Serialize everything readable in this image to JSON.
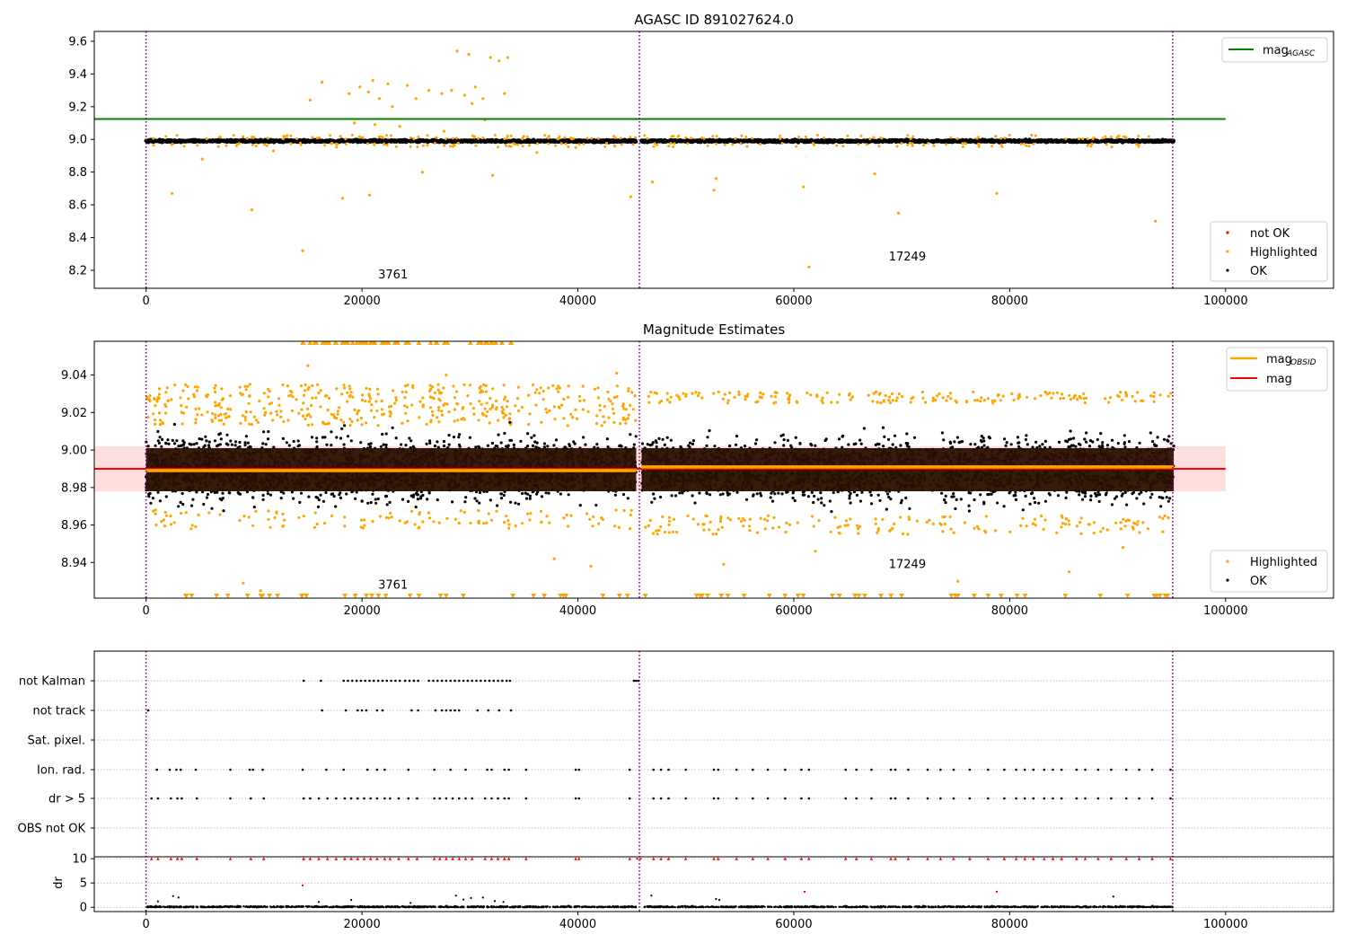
{
  "chart_data": [
    {
      "type": "scatter",
      "title": "AGASC ID 891027624.0",
      "xlim": [
        -4800,
        110000
      ],
      "ylim": [
        8.09,
        9.66
      ],
      "xticks": [
        0,
        20000,
        40000,
        60000,
        80000,
        100000
      ],
      "yticks": [
        8.2,
        8.4,
        8.6,
        8.8,
        9.0,
        9.2,
        9.4,
        9.6
      ],
      "vlines": [
        0,
        45700,
        95100
      ],
      "annotations": [
        {
          "text": "3761",
          "x": 21500,
          "y": 8.15
        },
        {
          "text": "17249",
          "x": 68800,
          "y": 8.26
        }
      ],
      "legend_top": [
        {
          "label": "mag",
          "sub": "AGASC",
          "color": "#008000",
          "kind": "line"
        }
      ],
      "legend_bottom": [
        {
          "label": "not OK",
          "color": "#ff0000",
          "kind": "dot"
        },
        {
          "label": "Highlighted",
          "color": "#ffa500",
          "kind": "dot"
        },
        {
          "label": "OK",
          "color": "#000000",
          "kind": "dot"
        }
      ],
      "mag_agasc": 9.125,
      "ok_band": {
        "center": 8.99,
        "spread": 0.02
      },
      "segments": [
        [
          0,
          45400
        ],
        [
          45900,
          95200
        ]
      ],
      "highlighted_points": [
        [
          14500,
          8.32
        ],
        [
          9800,
          8.57
        ],
        [
          2400,
          8.67
        ],
        [
          18200,
          8.64
        ],
        [
          20700,
          8.66
        ],
        [
          44900,
          8.65
        ],
        [
          46900,
          8.74
        ],
        [
          52600,
          8.69
        ],
        [
          52800,
          8.76
        ],
        [
          61400,
          8.22
        ],
        [
          69700,
          8.55
        ],
        [
          78800,
          8.67
        ],
        [
          93500,
          8.5
        ],
        [
          60900,
          8.71
        ],
        [
          67500,
          8.79
        ],
        [
          15200,
          9.24
        ],
        [
          16300,
          9.35
        ],
        [
          18800,
          9.28
        ],
        [
          19800,
          9.32
        ],
        [
          20600,
          9.29
        ],
        [
          21000,
          9.36
        ],
        [
          21600,
          9.25
        ],
        [
          22400,
          9.34
        ],
        [
          24200,
          9.33
        ],
        [
          25000,
          9.25
        ],
        [
          26200,
          9.3
        ],
        [
          27400,
          9.28
        ],
        [
          28300,
          9.3
        ],
        [
          28800,
          9.54
        ],
        [
          29500,
          9.27
        ],
        [
          29900,
          9.52
        ],
        [
          30500,
          9.32
        ],
        [
          31200,
          9.25
        ],
        [
          31900,
          9.5
        ],
        [
          32700,
          9.48
        ],
        [
          33500,
          9.5
        ],
        [
          33200,
          9.28
        ],
        [
          30200,
          9.22
        ],
        [
          22800,
          9.2
        ],
        [
          19300,
          9.1
        ],
        [
          21200,
          9.09
        ],
        [
          31400,
          9.12
        ],
        [
          27600,
          9.05
        ],
        [
          23500,
          9.08
        ],
        [
          25600,
          8.8
        ],
        [
          32100,
          8.78
        ],
        [
          5200,
          8.88
        ],
        [
          11800,
          8.93
        ],
        [
          36200,
          8.92
        ],
        [
          39800,
          8.95
        ]
      ]
    },
    {
      "type": "scatter",
      "title": "Magnitude Estimates",
      "xlim": [
        -4800,
        110000
      ],
      "ylim": [
        8.921,
        9.058
      ],
      "xticks": [
        0,
        20000,
        40000,
        60000,
        80000,
        100000
      ],
      "yticks": [
        8.94,
        8.96,
        8.98,
        9.0,
        9.02,
        9.04
      ],
      "vlines": [
        0,
        45700,
        95100
      ],
      "annotations": [
        {
          "text": "3761",
          "x": 21500,
          "y": 8.926
        },
        {
          "text": "17249",
          "x": 68800,
          "y": 8.937
        }
      ],
      "legend_top": [
        {
          "label": "mag",
          "sub": "OBSID",
          "color": "#ffa500",
          "kind": "line"
        },
        {
          "label": "mag",
          "sub": "",
          "color": "#ff0000",
          "kind": "line"
        }
      ],
      "legend_bottom": [
        {
          "label": "Highlighted",
          "color": "#ffa500",
          "kind": "dot"
        },
        {
          "label": "OK",
          "color": "#000000",
          "kind": "dot"
        }
      ],
      "mag": 8.99,
      "mag_band": [
        8.978,
        9.002
      ],
      "mag_obsid": [
        {
          "x0": 0,
          "x1": 45400,
          "y": 8.989
        },
        {
          "x0": 45900,
          "x1": 95200,
          "y": 8.991
        }
      ],
      "ok_band": {
        "center": 8.99,
        "spread": 0.02
      }
    },
    {
      "type": "scatter",
      "title": "",
      "xlim": [
        -4800,
        110000
      ],
      "xticks": [
        0,
        20000,
        40000,
        60000,
        80000,
        100000
      ],
      "vlines": [
        0,
        45700,
        95100
      ],
      "flag_labels": [
        "not Kalman",
        "not track",
        "Sat. pixel.",
        "Ion. rad.",
        "dr > 5",
        "OBS not OK"
      ],
      "ylabel": "dr",
      "dr_yticks": [
        0,
        5,
        10
      ],
      "dr_ylim": [
        -0.7,
        10.4
      ],
      "flags": {
        "not_kalman": [
          14600,
          16200,
          18300,
          18700,
          19100,
          19500,
          19900,
          20300,
          20700,
          21100,
          21500,
          21900,
          22300,
          22700,
          23100,
          23500,
          24000,
          24400,
          24800,
          25200,
          26200,
          26600,
          27000,
          27400,
          27800,
          28200,
          28600,
          29000,
          29400,
          29800,
          30200,
          30600,
          31000,
          31400,
          31800,
          32200,
          32600,
          33000,
          33400,
          33700,
          45200,
          45400,
          45600
        ],
        "not_track": [
          200,
          16300,
          18500,
          19600,
          20000,
          20400,
          21400,
          21900,
          24600,
          25200,
          26800,
          27400,
          27800,
          28200,
          28600,
          29000,
          30700,
          31700,
          32700,
          33800
        ],
        "sat_pixel": [],
        "ion_rad": [
          1000,
          2200,
          2800,
          3200,
          4600,
          7800,
          9600,
          9900,
          10800,
          14500,
          16700,
          18300,
          20500,
          21400,
          22100,
          24300,
          26700,
          28200,
          29600,
          31600,
          32000,
          33200,
          33600,
          35200,
          39800,
          40100,
          44800,
          47000,
          47700,
          48400,
          50000,
          52600,
          53000,
          54700,
          56200,
          57600,
          59200,
          60700,
          61400,
          64800,
          65800,
          67200,
          69000,
          69400,
          70600,
          72400,
          73600,
          74800,
          76300,
          78000,
          79500,
          80600,
          81400,
          82200,
          83200,
          84000,
          84800,
          86200,
          87000,
          88200,
          89400,
          90800,
          92000,
          93200,
          94900
        ],
        "dr_gt_5": [
          500,
          1100,
          2300,
          2900,
          3300,
          4700,
          7800,
          9700,
          10900,
          14600,
          15200,
          16000,
          16800,
          17600,
          18400,
          19000,
          19600,
          20200,
          20800,
          21400,
          22100,
          22600,
          23400,
          24300,
          25100,
          26700,
          27200,
          27800,
          28400,
          29000,
          29600,
          30200,
          31400,
          32000,
          32600,
          33200,
          33600,
          35200,
          39800,
          40100,
          44800,
          47000,
          47700,
          48400,
          50000,
          52600,
          53000,
          54700,
          56200,
          57600,
          59200,
          60700,
          61400,
          64800,
          65800,
          67200,
          69000,
          69400,
          70600,
          72400,
          73600,
          74800,
          76300,
          78000,
          79500,
          80600,
          81400,
          82200,
          83200,
          84000,
          84800,
          86200,
          87000,
          88200,
          89400,
          90800,
          92000,
          93200,
          94900
        ],
        "obs_not_ok": []
      },
      "dr_red_points": [
        [
          14500,
          4.5
        ],
        [
          61000,
          3.2
        ],
        [
          78800,
          3.2
        ],
        [
          45500,
          10
        ],
        [
          45800,
          10
        ]
      ],
      "dr_black_points": [
        [
          2500,
          2.3
        ],
        [
          1100,
          1.2
        ],
        [
          3000,
          2.0
        ],
        [
          16000,
          1.1
        ],
        [
          19000,
          1.5
        ],
        [
          24500,
          0.9
        ],
        [
          28700,
          2.4
        ],
        [
          29400,
          1.6
        ],
        [
          30100,
          1.9
        ],
        [
          31200,
          2.0
        ],
        [
          32300,
          1.3
        ],
        [
          33100,
          1.1
        ],
        [
          46800,
          2.4
        ],
        [
          52800,
          1.7
        ],
        [
          53100,
          1.5
        ],
        [
          89600,
          2.2
        ]
      ]
    }
  ]
}
